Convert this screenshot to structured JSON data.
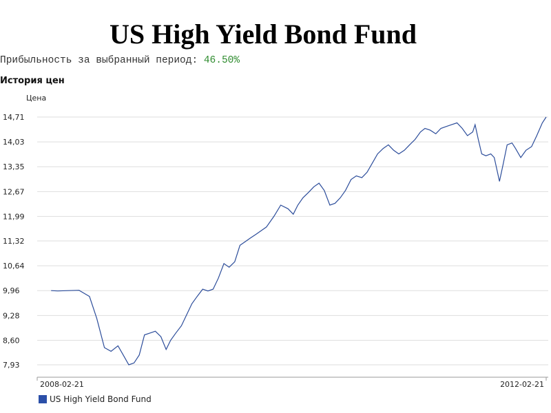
{
  "page": {
    "title": "US High Yield Bond Fund",
    "returns_label": "Прибыльность за выбранный период:",
    "returns_value": "46.50%",
    "section_title": "История цен"
  },
  "colors": {
    "line": "#2b4c9a",
    "grid": "#dddddd",
    "legend": "#2b4fa8",
    "returns": "#2e8b2e"
  },
  "chart_data": {
    "type": "line",
    "ylabel": "Цена",
    "yticks": [
      7.93,
      8.6,
      9.28,
      9.96,
      10.64,
      11.32,
      11.99,
      12.67,
      13.35,
      14.03,
      14.71
    ],
    "ytick_labels": [
      "7,93",
      "8,60",
      "9,28",
      "9,96",
      "10,64",
      "11,32",
      "11,99",
      "12,67",
      "13,35",
      "14,03",
      "14,71"
    ],
    "ylim": [
      7.6,
      14.9
    ],
    "xlim": [
      "2008-02-21",
      "2012-02-21"
    ],
    "xtick_labels": [
      "2008-02-21",
      "2012-02-21"
    ],
    "grid": true,
    "legend_position": "bottom-left",
    "series": [
      {
        "name": "US High Yield Bond Fund",
        "x": [
          "2008-04-01",
          "2008-04-20",
          "2008-05-20",
          "2008-06-20",
          "2008-07-20",
          "2008-08-10",
          "2008-09-01",
          "2008-09-20",
          "2008-10-10",
          "2008-10-25",
          "2008-11-10",
          "2008-11-25",
          "2008-12-10",
          "2008-12-25",
          "2009-01-10",
          "2009-01-25",
          "2009-02-10",
          "2009-02-25",
          "2009-03-10",
          "2009-03-25",
          "2009-04-10",
          "2009-04-25",
          "2009-05-10",
          "2009-05-25",
          "2009-06-10",
          "2009-06-25",
          "2009-07-10",
          "2009-07-25",
          "2009-08-10",
          "2009-08-25",
          "2009-09-10",
          "2009-09-25",
          "2009-10-10",
          "2009-10-25",
          "2009-11-10",
          "2009-11-25",
          "2009-12-10",
          "2010-01-01",
          "2010-01-20",
          "2010-02-10",
          "2010-02-25",
          "2010-03-10",
          "2010-03-25",
          "2010-04-10",
          "2010-04-25",
          "2010-05-10",
          "2010-05-25",
          "2010-06-10",
          "2010-06-25",
          "2010-07-10",
          "2010-07-25",
          "2010-08-10",
          "2010-08-25",
          "2010-09-10",
          "2010-09-25",
          "2010-10-10",
          "2010-10-25",
          "2010-11-10",
          "2010-11-25",
          "2010-12-10",
          "2010-12-25",
          "2011-01-10",
          "2011-01-25",
          "2011-02-10",
          "2011-02-25",
          "2011-03-10",
          "2011-03-25",
          "2011-04-10",
          "2011-04-25",
          "2011-05-10",
          "2011-05-25",
          "2011-06-10",
          "2011-06-25",
          "2011-07-10",
          "2011-07-25",
          "2011-08-01",
          "2011-08-10",
          "2011-08-20",
          "2011-09-01",
          "2011-09-15",
          "2011-09-25",
          "2011-10-10",
          "2011-10-20",
          "2011-11-01",
          "2011-11-15",
          "2011-11-25",
          "2011-12-10",
          "2011-12-25",
          "2012-01-10",
          "2012-01-25",
          "2012-02-10",
          "2012-02-21"
        ],
        "y": [
          9.96,
          9.95,
          9.96,
          9.97,
          9.8,
          9.2,
          8.4,
          8.3,
          8.45,
          8.2,
          7.93,
          7.98,
          8.2,
          8.75,
          8.8,
          8.85,
          8.7,
          8.35,
          8.6,
          8.8,
          9.0,
          9.3,
          9.6,
          9.8,
          10.0,
          9.95,
          10.0,
          10.3,
          10.7,
          10.6,
          10.75,
          11.2,
          11.3,
          11.4,
          11.5,
          11.6,
          11.7,
          12.0,
          12.3,
          12.2,
          12.05,
          12.3,
          12.5,
          12.65,
          12.8,
          12.9,
          12.7,
          12.3,
          12.35,
          12.5,
          12.7,
          13.0,
          13.1,
          13.05,
          13.2,
          13.45,
          13.7,
          13.85,
          13.95,
          13.8,
          13.7,
          13.8,
          13.95,
          14.1,
          14.3,
          14.4,
          14.35,
          14.25,
          14.4,
          14.45,
          14.5,
          14.55,
          14.4,
          14.2,
          14.3,
          14.5,
          14.1,
          13.7,
          13.65,
          13.7,
          13.6,
          12.95,
          13.4,
          13.95,
          14.0,
          13.85,
          13.6,
          13.8,
          13.9,
          14.2,
          14.55,
          14.71
        ]
      }
    ]
  }
}
